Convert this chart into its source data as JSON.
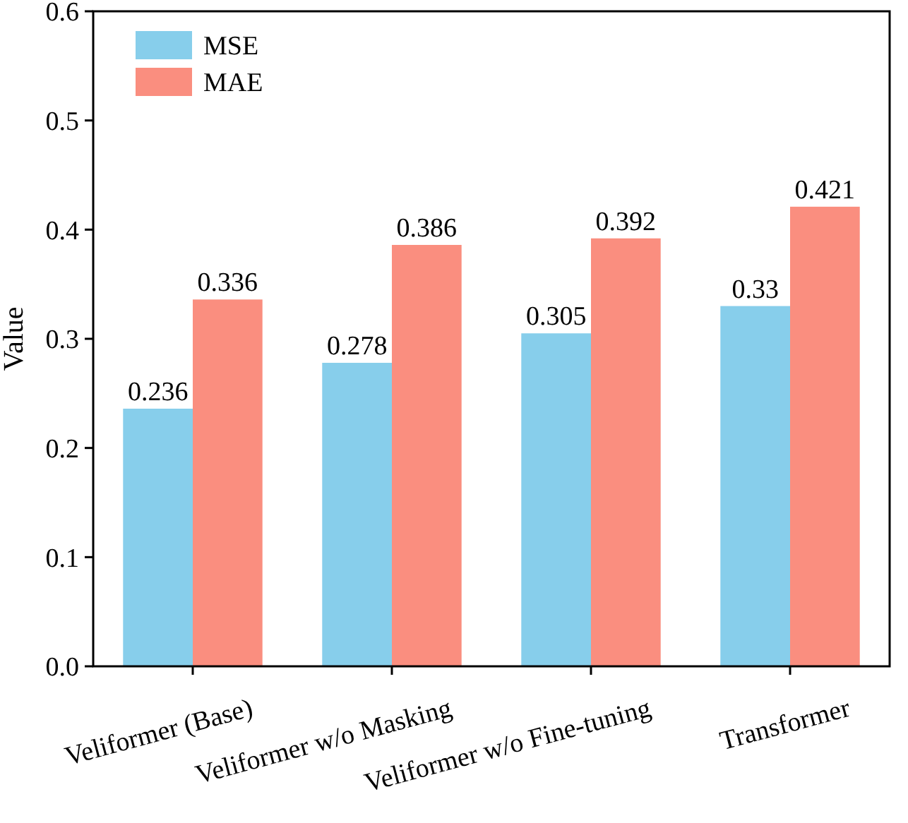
{
  "chart_data": {
    "type": "bar",
    "ylabel": "Value",
    "categories": [
      "Veliformer (Base)",
      "Veliformer w/o Masking",
      "Veliformer w/o Fine-tuning",
      "Transformer"
    ],
    "series": [
      {
        "name": "MSE",
        "color": "#87ceeb",
        "values": [
          0.236,
          0.278,
          0.305,
          0.33
        ]
      },
      {
        "name": "MAE",
        "color": "#fa8e7f",
        "values": [
          0.336,
          0.386,
          0.392,
          0.421
        ]
      }
    ],
    "ylim": [
      0,
      0.6
    ],
    "yticks": [
      {
        "value": 0,
        "label": "0.0"
      },
      0.1,
      0.2,
      0.3,
      0.4,
      0.5,
      0.6
    ],
    "data_labels": true,
    "legend": "top left",
    "grid": false
  }
}
